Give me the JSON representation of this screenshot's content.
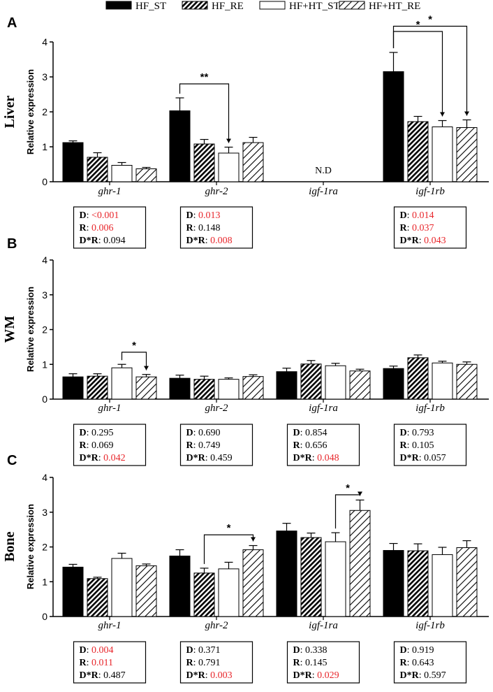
{
  "legend": {
    "series": [
      {
        "label": "HF_ST",
        "fill": "solid"
      },
      {
        "label": "HF_RE",
        "fill": "dense-hatch"
      },
      {
        "label": "HF+HT_ST",
        "fill": "white"
      },
      {
        "label": "HF+HT_RE",
        "fill": "sparse-hatch"
      }
    ]
  },
  "colors": {
    "significant": "#e8262b",
    "text": "#000000",
    "bar_solid": "#000000",
    "bar_white": "#ffffff"
  },
  "nd_label": "N.D",
  "chart_data": [
    {
      "type": "bar",
      "panel_label": "A",
      "tissue": "Liver",
      "ylabel": "Relative expression",
      "ylim": [
        0,
        4
      ],
      "yticks": [
        "0",
        "1",
        "2",
        "3",
        "4"
      ],
      "categories": [
        "ghr-1",
        "ghr-2",
        "igf-1ra",
        "igf-1rb"
      ],
      "series": [
        {
          "name": "HF_ST",
          "values": [
            1.12,
            2.03,
            null,
            3.15
          ],
          "errors": [
            0.05,
            0.37,
            null,
            0.55
          ]
        },
        {
          "name": "HF_RE",
          "values": [
            0.7,
            1.08,
            null,
            1.72
          ],
          "errors": [
            0.13,
            0.13,
            null,
            0.15
          ]
        },
        {
          "name": "HF+HT_ST",
          "values": [
            0.47,
            0.82,
            null,
            1.57
          ],
          "errors": [
            0.08,
            0.17,
            null,
            0.18
          ]
        },
        {
          "name": "HF+HT_RE",
          "values": [
            0.37,
            1.12,
            null,
            1.55
          ],
          "errors": [
            0.04,
            0.15,
            null,
            0.22
          ]
        }
      ],
      "not_detected": [
        false,
        false,
        true,
        false
      ],
      "significance": [
        {
          "category": "ghr-2",
          "from": "HF_ST",
          "to": "HF+HT_ST",
          "label": "**",
          "y": 2.8
        },
        {
          "category": "igf-1rb",
          "from": "HF_ST",
          "to": "HF+HT_ST",
          "label": "*",
          "y": 4.3
        },
        {
          "category": "igf-1rb",
          "from": "HF_ST",
          "to": "HF+HT_RE",
          "label": "*",
          "y": 4.45
        }
      ],
      "stats": [
        [
          {
            "k": "D",
            "v": "<0.001",
            "sig": true
          },
          {
            "k": "R",
            "v": "0.006",
            "sig": true
          },
          {
            "k": "D*R",
            "v": "0.094",
            "sig": false
          }
        ],
        [
          {
            "k": "D",
            "v": "0.013",
            "sig": true
          },
          {
            "k": "R",
            "v": "0.148",
            "sig": false
          },
          {
            "k": "D*R",
            "v": "0.008",
            "sig": true
          }
        ],
        null,
        [
          {
            "k": "D",
            "v": "0.014",
            "sig": true
          },
          {
            "k": "R",
            "v": "0.037",
            "sig": true
          },
          {
            "k": "D*R",
            "v": "0.043",
            "sig": true
          }
        ]
      ]
    },
    {
      "type": "bar",
      "panel_label": "B",
      "tissue": "WM",
      "ylabel": "Relative expression",
      "ylim": [
        0,
        4
      ],
      "yticks": [
        "0",
        "1",
        "2",
        "3",
        "4"
      ],
      "categories": [
        "ghr-1",
        "ghr-2",
        "igf-1ra",
        "igf-1rb"
      ],
      "series": [
        {
          "name": "HF_ST",
          "values": [
            0.64,
            0.6,
            0.79,
            0.88
          ],
          "errors": [
            0.09,
            0.09,
            0.1,
            0.07
          ]
        },
        {
          "name": "HF_RE",
          "values": [
            0.66,
            0.57,
            1.01,
            1.19
          ],
          "errors": [
            0.07,
            0.09,
            0.1,
            0.08
          ]
        },
        {
          "name": "HF+HT_ST",
          "values": [
            0.9,
            0.57,
            0.96,
            1.04
          ],
          "errors": [
            0.1,
            0.04,
            0.07,
            0.05
          ]
        },
        {
          "name": "HF+HT_RE",
          "values": [
            0.64,
            0.65,
            0.81,
            1.0
          ],
          "errors": [
            0.07,
            0.05,
            0.05,
            0.07
          ]
        }
      ],
      "not_detected": [
        false,
        false,
        false,
        false
      ],
      "significance": [
        {
          "category": "ghr-1",
          "from": "HF+HT_ST",
          "to": "HF+HT_RE",
          "label": "*",
          "y": 1.35
        }
      ],
      "stats": [
        [
          {
            "k": "D",
            "v": "0.295",
            "sig": false
          },
          {
            "k": "R",
            "v": "0.069",
            "sig": false
          },
          {
            "k": "D*R",
            "v": "0.042",
            "sig": true
          }
        ],
        [
          {
            "k": "D",
            "v": "0.690",
            "sig": false
          },
          {
            "k": "R",
            "v": "0.749",
            "sig": false
          },
          {
            "k": "D*R",
            "v": "0.459",
            "sig": false
          }
        ],
        [
          {
            "k": "D",
            "v": "0.854",
            "sig": false
          },
          {
            "k": "R",
            "v": "0.656",
            "sig": false
          },
          {
            "k": "D*R",
            "v": "0.048",
            "sig": true
          }
        ],
        [
          {
            "k": "D",
            "v": "0.793",
            "sig": false
          },
          {
            "k": "R",
            "v": "0.105",
            "sig": false
          },
          {
            "k": "D*R",
            "v": "0.057",
            "sig": false
          }
        ]
      ]
    },
    {
      "type": "bar",
      "panel_label": "C",
      "tissue": "Bone",
      "ylabel": "Relative expression",
      "ylim": [
        0,
        4
      ],
      "yticks": [
        "0",
        "1",
        "2",
        "3",
        "4"
      ],
      "categories": [
        "ghr-1",
        "ghr-2",
        "igf-1ra",
        "igf-1rb"
      ],
      "series": [
        {
          "name": "HF_ST",
          "values": [
            1.42,
            1.74,
            2.46,
            1.9
          ],
          "errors": [
            0.08,
            0.18,
            0.22,
            0.2
          ]
        },
        {
          "name": "HF_RE",
          "values": [
            1.09,
            1.25,
            2.27,
            1.89
          ],
          "errors": [
            0.04,
            0.14,
            0.13,
            0.2
          ]
        },
        {
          "name": "HF+HT_ST",
          "values": [
            1.67,
            1.37,
            2.15,
            1.78
          ],
          "errors": [
            0.15,
            0.19,
            0.26,
            0.21
          ]
        },
        {
          "name": "HF+HT_RE",
          "values": [
            1.46,
            1.92,
            3.05,
            1.98
          ],
          "errors": [
            0.05,
            0.12,
            0.3,
            0.2
          ]
        }
      ],
      "not_detected": [
        false,
        false,
        false,
        false
      ],
      "significance": [
        {
          "category": "ghr-2",
          "from": "HF_RE",
          "to": "HF+HT_RE",
          "label": "*",
          "y": 2.35
        },
        {
          "category": "igf-1ra",
          "from": "HF+HT_ST",
          "to": "HF+HT_RE",
          "label": "*",
          "y": 3.5
        }
      ],
      "stats": [
        [
          {
            "k": "D",
            "v": "0.004",
            "sig": true
          },
          {
            "k": "R",
            "v": "0.011",
            "sig": true
          },
          {
            "k": "D*R",
            "v": "0.487",
            "sig": false
          }
        ],
        [
          {
            "k": "D",
            "v": "0.371",
            "sig": false
          },
          {
            "k": "R",
            "v": "0.791",
            "sig": false
          },
          {
            "k": "D*R",
            "v": "0.003",
            "sig": true
          }
        ],
        [
          {
            "k": "D",
            "v": "0.338",
            "sig": false
          },
          {
            "k": "R",
            "v": "0.145",
            "sig": false
          },
          {
            "k": "D*R",
            "v": "0.029",
            "sig": true
          }
        ],
        [
          {
            "k": "D",
            "v": "0.919",
            "sig": false
          },
          {
            "k": "R",
            "v": "0.643",
            "sig": false
          },
          {
            "k": "D*R",
            "v": "0.597",
            "sig": false
          }
        ]
      ]
    }
  ]
}
